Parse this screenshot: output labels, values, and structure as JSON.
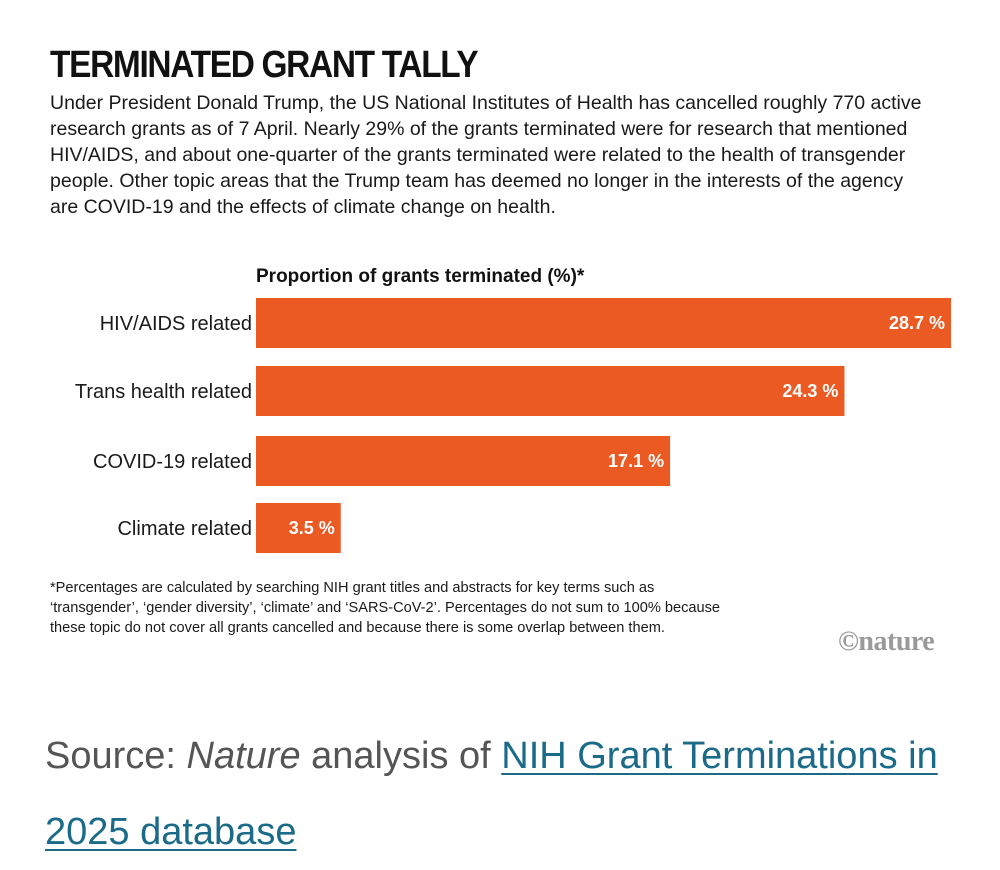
{
  "title": "TERMINATED GRANT TALLY",
  "intro": "Under President Donald Trump, the US National Institutes of Health has cancelled roughly 770 active research grants as of 7 April. Nearly 29% of the grants terminated were for research that mentioned HIV/AIDS, and about one-quarter of the grants terminated were related to the health of transgender people. Other topic areas that the Trump team has deemed no longer in the interests of the agency are COVID-19 and the effects of climate change on health.",
  "chart_data": {
    "type": "bar",
    "orientation": "horizontal",
    "title": "Proportion of grants terminated (%)*",
    "categories": [
      "HIV/AIDS related",
      "Trans health related",
      "COVID-19 related",
      "Climate related"
    ],
    "values": [
      28.7,
      24.3,
      17.1,
      3.5
    ],
    "value_labels": [
      "28.7 %",
      "24.3 %",
      "17.1 %",
      "3.5 %"
    ],
    "xlim": [
      0,
      28.7
    ],
    "grid": false,
    "bar_color": "#ea5a22"
  },
  "footnote": "*Percentages are calculated by searching NIH grant titles and abstracts for key terms such as ‘transgender’, ‘gender diversity’, ‘climate’ and ‘SARS-CoV-2’. Percentages do not sum to 100% because these topic do not cover all grants cancelled and because there is some overlap between them.",
  "logo": "©nature",
  "source": {
    "prefix": "Source: ",
    "publication": "Nature",
    "middle": " analysis of ",
    "link_text": "NIH Grant Terminations in 2025 database"
  },
  "colors": {
    "link": "#1a6a88",
    "source_text": "#555555"
  }
}
